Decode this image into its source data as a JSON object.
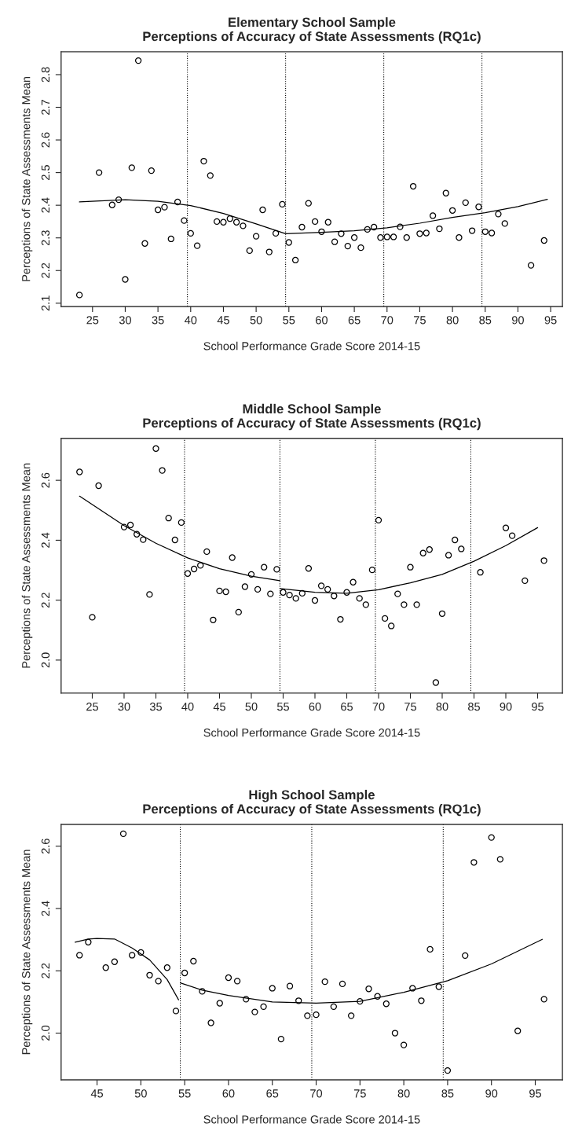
{
  "chart_data": [
    {
      "type": "scatter",
      "title": "Elementary School Sample\nPerceptions of Accuracy of State Assessments (RQ1c)",
      "xlabel": "School Performance Grade Score 2014-15",
      "ylabel": "Perceptions of State Assessments Mean",
      "xlim": [
        20.2,
        96.8
      ],
      "xticks": [
        25,
        30,
        35,
        40,
        45,
        50,
        55,
        60,
        65,
        70,
        75,
        80,
        85,
        90,
        95
      ],
      "ylim": [
        2.09,
        2.87
      ],
      "yticks": [
        2.1,
        2.2,
        2.3,
        2.4,
        2.5,
        2.6,
        2.7,
        2.8
      ],
      "grid": false,
      "legend": false,
      "ref_lines": [
        {
          "axis": "x",
          "value": 39.5,
          "color": "#000000",
          "line_style": "dotted"
        },
        {
          "axis": "x",
          "value": 54.5,
          "color": "#000000",
          "line_style": "dotted"
        },
        {
          "axis": "x",
          "value": 69.5,
          "color": "#000000",
          "line_style": "dotted"
        },
        {
          "axis": "x",
          "value": 84.5,
          "color": "#000000",
          "line_style": "dotted"
        }
      ],
      "series": [
        {
          "marker": "circle",
          "color": "#000000",
          "x": [
            23,
            26,
            28,
            29,
            30,
            31,
            32,
            33,
            34,
            35,
            36,
            37,
            38,
            39,
            40,
            41,
            42,
            43,
            44,
            45,
            46,
            47,
            48,
            49,
            50,
            51,
            52,
            53,
            54,
            55,
            56,
            57,
            58,
            59,
            60,
            61,
            62,
            63,
            64,
            65,
            66,
            67,
            68,
            69,
            70,
            71,
            72,
            73,
            74,
            75,
            76,
            77,
            78,
            79,
            80,
            81,
            82,
            83,
            84,
            85,
            86,
            87,
            88,
            92,
            94
          ],
          "values": [
            2.125,
            2.5,
            2.401,
            2.417,
            2.173,
            2.515,
            2.843,
            2.283,
            2.506,
            2.386,
            2.394,
            2.297,
            2.41,
            2.353,
            2.314,
            2.276,
            2.535,
            2.491,
            2.35,
            2.348,
            2.359,
            2.348,
            2.337,
            2.261,
            2.305,
            2.386,
            2.257,
            2.314,
            2.403,
            2.286,
            2.232,
            2.333,
            2.406,
            2.35,
            2.319,
            2.348,
            2.288,
            2.313,
            2.275,
            2.301,
            2.27,
            2.326,
            2.333,
            2.301,
            2.303,
            2.303,
            2.334,
            2.301,
            2.458,
            2.313,
            2.315,
            2.368,
            2.328,
            2.437,
            2.384,
            2.301,
            2.408,
            2.322,
            2.395,
            2.319,
            2.315,
            2.373,
            2.344,
            2.216,
            2.292
          ]
        },
        {
          "type": "line",
          "marker": "none",
          "line_style": "solid",
          "color": "#000000",
          "x": [
            23,
            30,
            35,
            40,
            45,
            50,
            54.5,
            60,
            65,
            70,
            75,
            80,
            85,
            90,
            94.5
          ],
          "values": [
            2.41,
            2.417,
            2.412,
            2.399,
            2.375,
            2.343,
            2.313,
            2.317,
            2.322,
            2.331,
            2.345,
            2.363,
            2.377,
            2.396,
            2.418
          ]
        }
      ]
    },
    {
      "type": "scatter",
      "title": "Middle School Sample\nPerceptions of Accuracy of State Assessments (RQ1c)",
      "xlabel": "School Performance Grade Score 2014-15",
      "ylabel": "Perceptions of State Assessments Mean",
      "xlim": [
        20.1,
        98.9
      ],
      "xticks": [
        25,
        30,
        35,
        40,
        45,
        50,
        55,
        60,
        65,
        70,
        75,
        80,
        85,
        90,
        95
      ],
      "ylim": [
        1.89,
        2.74
      ],
      "yticks": [
        {
          "value": 2.0,
          "label": "2.0"
        },
        2.2,
        2.4,
        2.6
      ],
      "grid": false,
      "legend": false,
      "ref_lines": [
        {
          "axis": "x",
          "value": 39.5,
          "color": "#000000",
          "line_style": "dotted"
        },
        {
          "axis": "x",
          "value": 54.5,
          "color": "#000000",
          "line_style": "dotted"
        },
        {
          "axis": "x",
          "value": 69.5,
          "color": "#000000",
          "line_style": "dotted"
        },
        {
          "axis": "x",
          "value": 84.5,
          "color": "#000000",
          "line_style": "dotted"
        }
      ],
      "series": [
        {
          "marker": "circle",
          "color": "#000000",
          "x": [
            23,
            25,
            26,
            30,
            31,
            32,
            33,
            34,
            35,
            36,
            37,
            38,
            39,
            40,
            41,
            42,
            43,
            44,
            45,
            46,
            47,
            48,
            49,
            50,
            51,
            52,
            53,
            54,
            55,
            56,
            57,
            58,
            59,
            60,
            61,
            62,
            63,
            64,
            65,
            66,
            67,
            68,
            69,
            70,
            71,
            72,
            73,
            74,
            75,
            76,
            77,
            78,
            79,
            80,
            81,
            82,
            83,
            86,
            90,
            91,
            93,
            96
          ],
          "values": [
            2.628,
            2.143,
            2.582,
            2.444,
            2.451,
            2.42,
            2.402,
            2.219,
            2.706,
            2.633,
            2.474,
            2.401,
            2.459,
            2.289,
            2.304,
            2.316,
            2.362,
            2.134,
            2.231,
            2.228,
            2.342,
            2.16,
            2.245,
            2.286,
            2.236,
            2.31,
            2.221,
            2.303,
            2.226,
            2.217,
            2.206,
            2.223,
            2.306,
            2.199,
            2.248,
            2.236,
            2.214,
            2.136,
            2.226,
            2.26,
            2.206,
            2.185,
            2.301,
            2.467,
            2.139,
            2.114,
            2.221,
            2.185,
            2.31,
            2.185,
            2.357,
            2.369,
            1.925,
            2.155,
            2.35,
            2.401,
            2.371,
            2.293,
            2.441,
            2.415,
            2.265,
            2.332
          ]
        },
        {
          "type": "line",
          "marker": "none",
          "line_style": "solid",
          "color": "#000000",
          "x": [
            23,
            30,
            35,
            40,
            45,
            50,
            54.5
          ],
          "values": [
            2.547,
            2.449,
            2.39,
            2.341,
            2.305,
            2.28,
            2.265
          ]
        },
        {
          "type": "line",
          "marker": "none",
          "line_style": "solid",
          "color": "#000000",
          "x": [
            54.5,
            60,
            65,
            70,
            75,
            80,
            85,
            90,
            95
          ],
          "values": [
            2.239,
            2.226,
            2.223,
            2.235,
            2.258,
            2.286,
            2.33,
            2.382,
            2.442
          ]
        }
      ]
    },
    {
      "type": "scatter",
      "title": "High School Sample\nPerceptions of Accuracy of State Assessments (RQ1c)",
      "xlabel": "School Performance Grade Score 2014-15",
      "ylabel": "Perceptions of State Assessments Mean",
      "xlim": [
        40.9,
        98.1
      ],
      "xticks": [
        45,
        50,
        55,
        60,
        65,
        70,
        75,
        80,
        85,
        90,
        95
      ],
      "ylim": [
        1.85,
        2.67
      ],
      "yticks": [
        {
          "value": 2.0,
          "label": "2.0"
        },
        2.2,
        2.4,
        2.6
      ],
      "grid": false,
      "legend": false,
      "ref_lines": [
        {
          "axis": "x",
          "value": 54.5,
          "color": "#000000",
          "line_style": "dotted"
        },
        {
          "axis": "x",
          "value": 69.5,
          "color": "#000000",
          "line_style": "dotted"
        },
        {
          "axis": "x",
          "value": 84.5,
          "color": "#000000",
          "line_style": "dotted"
        }
      ],
      "series": [
        {
          "marker": "circle",
          "color": "#000000",
          "x": [
            43,
            44,
            46,
            47,
            48,
            49,
            50,
            51,
            52,
            53,
            54,
            55,
            56,
            57,
            58,
            59,
            60,
            61,
            62,
            63,
            64,
            65,
            66,
            67,
            68,
            69,
            70,
            71,
            72,
            73,
            74,
            75,
            76,
            77,
            78,
            79,
            80,
            81,
            82,
            83,
            84,
            85,
            87,
            88,
            90,
            91,
            93,
            96
          ],
          "values": [
            2.25,
            2.292,
            2.21,
            2.229,
            2.64,
            2.25,
            2.259,
            2.186,
            2.167,
            2.21,
            2.071,
            2.193,
            2.231,
            2.134,
            2.033,
            2.096,
            2.178,
            2.167,
            2.109,
            2.068,
            2.085,
            2.144,
            1.981,
            2.151,
            2.104,
            2.056,
            2.059,
            2.165,
            2.085,
            2.158,
            2.056,
            2.102,
            2.142,
            2.118,
            2.094,
            2.0,
            1.962,
            2.144,
            2.104,
            2.269,
            2.149,
            1.88,
            2.249,
            2.548,
            2.628,
            2.558,
            2.007,
            2.109
          ]
        },
        {
          "type": "line",
          "marker": "none",
          "line_style": "solid",
          "color": "#000000",
          "x": [
            42.5,
            44,
            45,
            47,
            49,
            51,
            53,
            54.3
          ],
          "values": [
            2.292,
            2.302,
            2.304,
            2.302,
            2.273,
            2.235,
            2.172,
            2.107
          ]
        },
        {
          "type": "line",
          "marker": "none",
          "line_style": "solid",
          "color": "#000000",
          "x": [
            54.5,
            57,
            60,
            65,
            70,
            75,
            80,
            85,
            90,
            95.8
          ],
          "values": [
            2.161,
            2.138,
            2.121,
            2.1,
            2.096,
            2.102,
            2.131,
            2.168,
            2.222,
            2.301
          ]
        }
      ]
    }
  ]
}
